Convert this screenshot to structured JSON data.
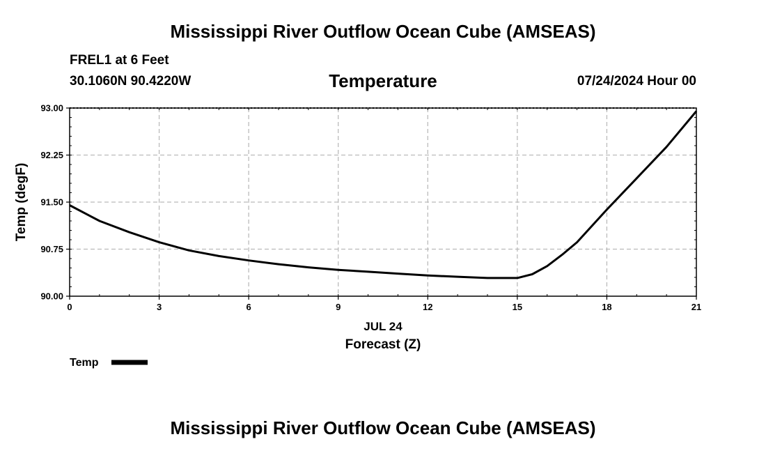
{
  "header": {
    "title": "Mississippi River Outflow Ocean Cube (AMSEAS)",
    "station": "FREL1 at 6 Feet",
    "coords": "30.1060N  90.4220W",
    "datetime": "07/24/2024 Hour 00",
    "footer_title": "Mississippi River Outflow Ocean Cube (AMSEAS)"
  },
  "chart_data": {
    "type": "line",
    "title": "Temperature",
    "xlabel": "Forecast (Z)",
    "xsublabel": "JUL 24",
    "ylabel": "Temp (degF)",
    "xlim": [
      0,
      21
    ],
    "ylim": [
      90.0,
      93.0
    ],
    "xticks": [
      "0",
      "3",
      "6",
      "9",
      "12",
      "15",
      "18",
      "21"
    ],
    "yticks": [
      "90.00",
      "90.75",
      "91.50",
      "92.25",
      "93.00"
    ],
    "grid": true,
    "legend": "bottom-left",
    "series": [
      {
        "name": "Temp",
        "color": "#000000",
        "x": [
          0,
          1,
          2,
          3,
          4,
          5,
          6,
          7,
          8,
          9,
          10,
          11,
          12,
          13,
          14,
          14.5,
          15,
          15.5,
          16,
          16.5,
          17,
          18,
          19,
          20,
          21
        ],
        "y": [
          91.45,
          91.2,
          91.02,
          90.86,
          90.73,
          90.64,
          90.57,
          90.51,
          90.46,
          90.42,
          90.39,
          90.36,
          90.33,
          90.31,
          90.29,
          90.29,
          90.29,
          90.35,
          90.48,
          90.66,
          90.86,
          91.38,
          91.88,
          92.38,
          92.95
        ]
      }
    ]
  }
}
